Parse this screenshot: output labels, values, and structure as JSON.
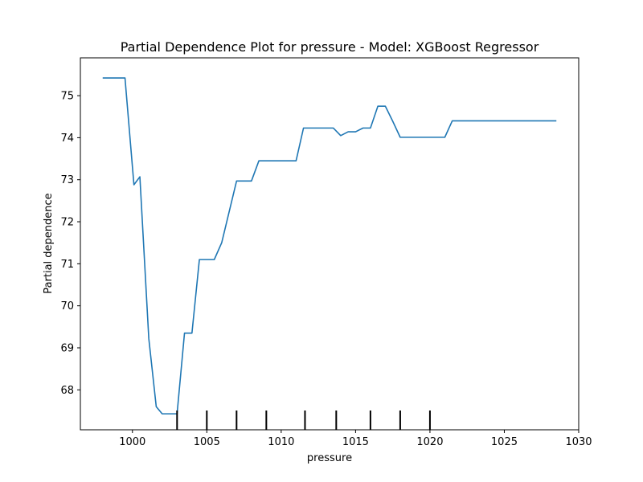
{
  "chart_data": {
    "type": "line",
    "title": "Partial Dependence Plot for pressure - Model: XGBoost Regressor",
    "xlabel": "pressure",
    "ylabel": "Partial dependence",
    "xlim": [
      996.5,
      1030
    ],
    "ylim": [
      67.05,
      75.9
    ],
    "xticks": [
      1000,
      1005,
      1010,
      1015,
      1020,
      1025,
      1030
    ],
    "yticks": [
      68,
      69,
      70,
      71,
      72,
      73,
      74,
      75
    ],
    "grid": false,
    "line_color": "#1f77b4",
    "series": [
      {
        "x": [
          998.0,
          999.5,
          1000.1,
          1000.5,
          1001.1,
          1001.6,
          1002.0,
          1003.0,
          1003.5,
          1004.0,
          1004.5,
          1005.5,
          1006.0,
          1007.0,
          1008.0,
          1008.5,
          1011.0,
          1011.5,
          1013.5,
          1014.0,
          1014.5,
          1015.0,
          1015.5,
          1016.0,
          1016.5,
          1017.0,
          1017.5,
          1018.0,
          1021.0,
          1021.5,
          1028.5
        ],
        "y": [
          75.42,
          75.42,
          72.88,
          73.07,
          69.22,
          67.6,
          67.43,
          67.43,
          69.35,
          69.35,
          71.1,
          71.1,
          71.5,
          72.97,
          72.97,
          73.45,
          73.45,
          74.23,
          74.23,
          74.05,
          74.14,
          74.14,
          74.23,
          74.23,
          74.75,
          74.75,
          74.39,
          74.01,
          74.01,
          74.4,
          74.4
        ]
      }
    ],
    "rug_ticks": [
      1003,
      1005,
      1007,
      1009,
      1011.6,
      1013.7,
      1016,
      1018,
      1020
    ]
  }
}
